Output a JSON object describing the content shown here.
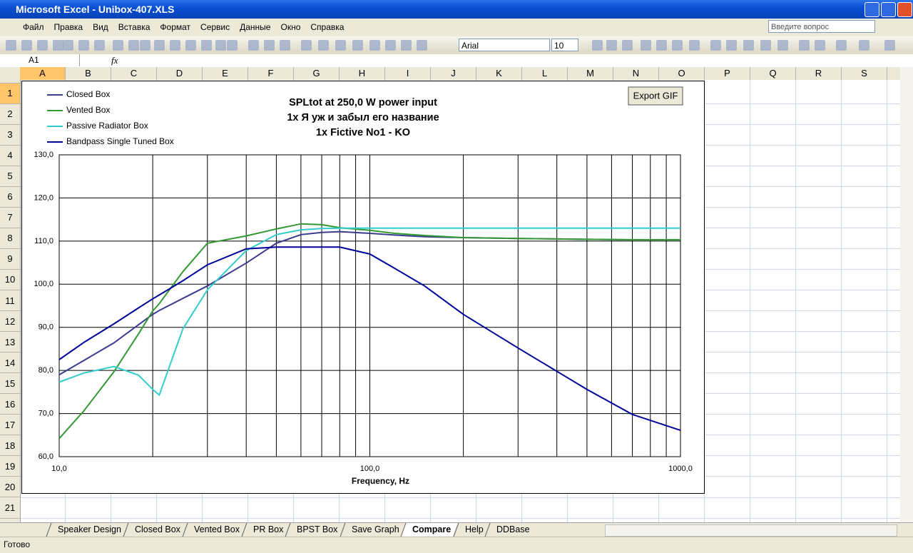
{
  "window_title": "Microsoft Excel - Unibox-407.XLS",
  "menu": [
    "Файл",
    "Правка",
    "Вид",
    "Вставка",
    "Формат",
    "Сервис",
    "Данные",
    "Окно",
    "Справка"
  ],
  "help_box": "Введите вопрос",
  "toolbar": {
    "font": "Arial",
    "size": "10"
  },
  "formula_bar": {
    "name_box": "A1",
    "fx": "fx"
  },
  "columns": [
    "A",
    "B",
    "C",
    "D",
    "E",
    "F",
    "G",
    "H",
    "I",
    "J",
    "K",
    "L",
    "M",
    "N",
    "O",
    "P",
    "Q",
    "R",
    "S"
  ],
  "rows": [
    1,
    2,
    3,
    4,
    5,
    6,
    7,
    8,
    9,
    10,
    11,
    12,
    13,
    14,
    15,
    16,
    17,
    18,
    19,
    20,
    21
  ],
  "sheet_tabs": [
    "Speaker Design",
    "Closed Box",
    "Vented Box",
    "PR Box",
    "BPST Box",
    "Save Graph",
    "Compare",
    "Help",
    "DDBase"
  ],
  "status": "Готово",
  "chart_data": {
    "type": "line",
    "title": [
      "SPLtot at 250,0 W power input",
      "1x Я уж и забыл его название",
      "1x Fictive No1 - KO"
    ],
    "x_label": "Frequency, Hz",
    "button": "Export GIF",
    "x": [
      10,
      12,
      15,
      18,
      20,
      21,
      25,
      30,
      40,
      50,
      60,
      70,
      80,
      100,
      120,
      150,
      200,
      300,
      500,
      700,
      1000
    ],
    "series": [
      {
        "name": "Closed Box",
        "color": "#3b3b8f",
        "values": [
          79,
          82.3,
          86.4,
          90.6,
          93,
          93.9,
          96.7,
          99.6,
          104.9,
          109.5,
          111.5,
          112,
          112.2,
          111.8,
          111.4,
          111,
          110.8,
          110.6,
          110.4,
          110.3,
          110.3
        ]
      },
      {
        "name": "Vented Box",
        "color": "#339933",
        "values": [
          64.2,
          70.6,
          79.7,
          88.5,
          93.8,
          95.5,
          102.9,
          109.5,
          111.2,
          112.8,
          114,
          113.8,
          113.1,
          112.5,
          111.8,
          111.3,
          110.8,
          110.6,
          110.4,
          110.3,
          110.3
        ]
      },
      {
        "name": "Passive Radiator Box",
        "color": "#33cccc",
        "values": [
          77.3,
          79.4,
          80.9,
          78.9,
          75.6,
          74.3,
          89.6,
          98.7,
          107.8,
          111.5,
          112.6,
          112.9,
          113,
          113,
          113,
          113,
          113,
          113,
          113,
          113,
          113
        ]
      },
      {
        "name": "Bandpass Single Tuned Box",
        "color": "#000099",
        "values": [
          82.5,
          86.5,
          90.8,
          94.5,
          96.6,
          97.5,
          100.8,
          104.5,
          108.2,
          108.6,
          108.6,
          108.6,
          108.6,
          107,
          103.7,
          99.6,
          93,
          85.2,
          75.6,
          69.8,
          66.1
        ]
      }
    ],
    "xscale": "log",
    "xlim": [
      10,
      1000
    ],
    "xticks": [
      {
        "value": 10,
        "label": "10,0"
      },
      {
        "value": 100,
        "label": "100,0"
      },
      {
        "value": 1000,
        "label": "1000,0"
      }
    ],
    "ylim": [
      60,
      130
    ],
    "yticks": [
      {
        "value": 60,
        "label": "60,0"
      },
      {
        "value": 70,
        "label": "70,0"
      },
      {
        "value": 80,
        "label": "80,0"
      },
      {
        "value": 90,
        "label": "90,0"
      },
      {
        "value": 100,
        "label": "100,0"
      },
      {
        "value": 110,
        "label": "110,0"
      },
      {
        "value": 120,
        "label": "120,0"
      },
      {
        "value": 130,
        "label": "130,0"
      }
    ],
    "grid": true,
    "minor_grid": true,
    "legend": "upper left"
  }
}
